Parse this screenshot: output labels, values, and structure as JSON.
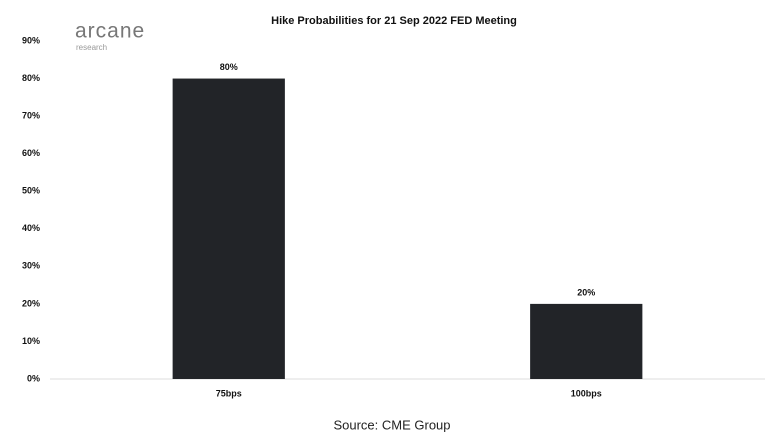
{
  "logo": {
    "name": "arcane",
    "tagline": "research"
  },
  "chart_data": {
    "type": "bar",
    "title": "Hike Probabilities for 21 Sep 2022 FED Meeting",
    "categories": [
      "75bps",
      "100bps"
    ],
    "values": [
      80,
      20
    ],
    "value_labels": [
      "80%",
      "20%"
    ],
    "color": "#222428",
    "ylim": [
      0,
      90
    ],
    "yticks": [
      {
        "value": 0,
        "label": "0%"
      },
      {
        "value": 10,
        "label": "10%"
      },
      {
        "value": 20,
        "label": "20%"
      },
      {
        "value": 30,
        "label": "30%"
      },
      {
        "value": 40,
        "label": "40%"
      },
      {
        "value": 50,
        "label": "50%"
      },
      {
        "value": 60,
        "label": "60%"
      },
      {
        "value": 70,
        "label": "70%"
      },
      {
        "value": 80,
        "label": "80%"
      },
      {
        "value": 90,
        "label": "90%"
      }
    ],
    "grid": false,
    "source": "Source: CME Group"
  }
}
